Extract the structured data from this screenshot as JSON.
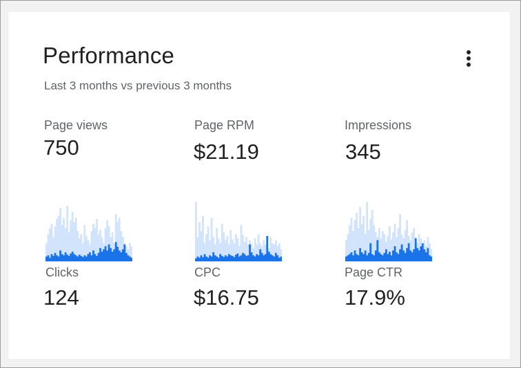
{
  "card": {
    "title": "Performance",
    "subtitle": "Last 3 months vs previous 3 months",
    "menu_icon": "more-vert-icon"
  },
  "metrics": [
    {
      "label": "Page views",
      "value": "750"
    },
    {
      "label": "Page RPM",
      "value": "$21.19"
    },
    {
      "label": "Impressions",
      "value": "345"
    },
    {
      "label": "Clicks",
      "value": "124"
    },
    {
      "label": "CPC",
      "value": "$16.75"
    },
    {
      "label": "Page CTR",
      "value": "17.9%"
    }
  ],
  "colors": {
    "current": "#1a73e8",
    "previous": "#d2e3fc",
    "text_primary": "#202124",
    "text_secondary": "#5f6368"
  },
  "chart_data": [
    {
      "type": "bar",
      "series": [
        {
          "name": "",
          "values": [
            0.3,
            0.45,
            0.55,
            0.62,
            0.4,
            0.58,
            0.7,
            0.75,
            0.88,
            0.6,
            0.72,
            0.55,
            0.92,
            0.48,
            0.68,
            0.82,
            0.65,
            0.72,
            0.5,
            0.38,
            0.45,
            0.3,
            0.6,
            0.42,
            0.35,
            0.28,
            0.5,
            0.62,
            0.55,
            0.7,
            0.45,
            0.52,
            0.4,
            0.3,
            0.55,
            0.68,
            0.58,
            0.4,
            0.48,
            0.3,
            0.78,
            0.65,
            0.72,
            0.5,
            0.4,
            0.3,
            0.25,
            0.2,
            0.3,
            0.25
          ]
        },
        {
          "name": "",
          "values": [
            0.08,
            0.1,
            0.06,
            0.12,
            0.09,
            0.14,
            0.1,
            0.08,
            0.18,
            0.12,
            0.1,
            0.15,
            0.11,
            0.09,
            0.13,
            0.16,
            0.12,
            0.1,
            0.08,
            0.11,
            0.09,
            0.07,
            0.1,
            0.08,
            0.12,
            0.15,
            0.1,
            0.18,
            0.12,
            0.09,
            0.14,
            0.22,
            0.16,
            0.2,
            0.25,
            0.18,
            0.28,
            0.22,
            0.16,
            0.2,
            0.32,
            0.24,
            0.18,
            0.15,
            0.2,
            0.28,
            0.14,
            0.1,
            0.08,
            0.06
          ]
        }
      ]
    },
    {
      "type": "bar",
      "series": [
        {
          "name": "",
          "values": [
            0.98,
            0.4,
            0.65,
            0.5,
            0.75,
            0.3,
            0.45,
            0.58,
            0.35,
            0.72,
            0.4,
            0.28,
            0.55,
            0.38,
            0.3,
            0.62,
            0.48,
            0.35,
            0.42,
            0.28,
            0.52,
            0.36,
            0.3,
            0.45,
            0.38,
            0.25,
            0.6,
            0.44,
            0.32,
            0.4,
            0.28,
            0.35,
            0.3,
            0.22,
            0.38,
            0.28,
            0.45,
            0.3,
            0.25,
            0.35,
            0.28,
            0.3,
            0.22,
            0.4,
            0.3,
            0.28,
            0.35,
            0.25,
            0.3,
            0.2
          ]
        },
        {
          "name": "",
          "values": [
            0.05,
            0.08,
            0.06,
            0.1,
            0.07,
            0.12,
            0.08,
            0.06,
            0.1,
            0.08,
            0.15,
            0.1,
            0.08,
            0.06,
            0.12,
            0.09,
            0.07,
            0.1,
            0.08,
            0.12,
            0.1,
            0.09,
            0.07,
            0.11,
            0.13,
            0.08,
            0.1,
            0.14,
            0.12,
            0.09,
            0.1,
            0.28,
            0.15,
            0.1,
            0.08,
            0.12,
            0.1,
            0.2,
            0.14,
            0.1,
            0.12,
            0.42,
            0.16,
            0.12,
            0.1,
            0.08,
            0.14,
            0.1,
            0.06,
            0.08
          ]
        }
      ]
    },
    {
      "type": "bar",
      "series": [
        {
          "name": "",
          "values": [
            0.35,
            0.45,
            0.6,
            0.72,
            0.5,
            0.68,
            0.8,
            0.55,
            0.9,
            0.62,
            0.75,
            0.45,
            0.98,
            0.52,
            0.7,
            0.85,
            0.6,
            0.48,
            0.4,
            0.55,
            0.38,
            0.5,
            0.45,
            0.32,
            0.42,
            0.58,
            0.36,
            0.48,
            0.62,
            0.4,
            0.55,
            0.78,
            0.45,
            0.38,
            0.52,
            0.68,
            0.42,
            0.35,
            0.48,
            0.55,
            0.4,
            0.3,
            0.45,
            0.38,
            0.28,
            0.35,
            0.25,
            0.4,
            0.3,
            0.2
          ]
        },
        {
          "name": "",
          "values": [
            0.08,
            0.1,
            0.12,
            0.15,
            0.1,
            0.18,
            0.12,
            0.1,
            0.22,
            0.15,
            0.12,
            0.18,
            0.1,
            0.14,
            0.3,
            0.12,
            0.1,
            0.18,
            0.35,
            0.15,
            0.12,
            0.1,
            0.14,
            0.2,
            0.12,
            0.16,
            0.1,
            0.18,
            0.25,
            0.15,
            0.12,
            0.2,
            0.28,
            0.18,
            0.14,
            0.22,
            0.3,
            0.18,
            0.15,
            0.2,
            0.38,
            0.22,
            0.18,
            0.25,
            0.3,
            0.2,
            0.15,
            0.22,
            0.1,
            0.08
          ]
        }
      ]
    }
  ]
}
